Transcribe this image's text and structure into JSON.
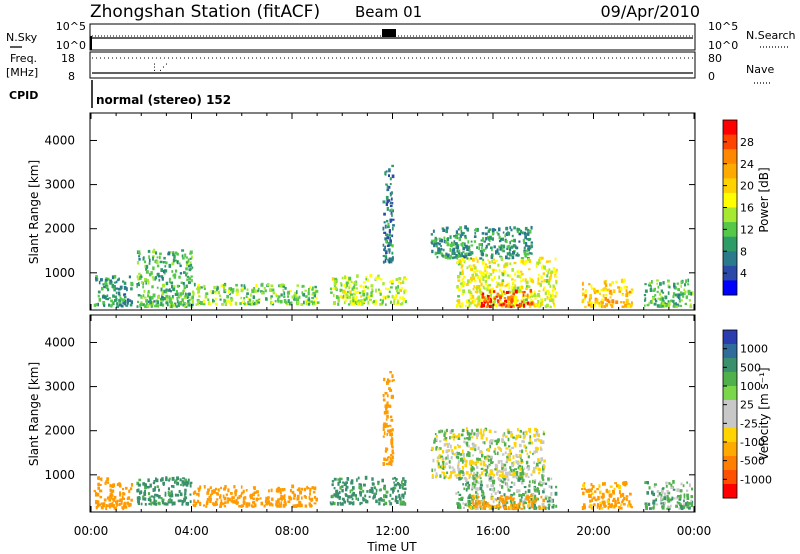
{
  "header": {
    "station": "Zhongshan Station (fitACF)",
    "beam": "Beam 01",
    "date": "09/Apr/2010"
  },
  "aux_panels": {
    "nsky_label": "N.Sky",
    "nsearch_label": "N.Search",
    "noise_left_ticks": [
      "10^5",
      "10^0"
    ],
    "noise_right_ticks": [
      "10^5",
      "10^0"
    ],
    "freq_label_line1": "Freq.",
    "freq_label_line2": "[MHz]",
    "freq_ticks": [
      "18",
      "8"
    ],
    "nave_label": "Nave",
    "nave_ticks": [
      "80",
      "0"
    ],
    "cpid_label": "CPID",
    "cpid_text": "normal (stereo) 152"
  },
  "colorbars": {
    "power": {
      "label": "Power [dB]",
      "ticks": [
        "28",
        "24",
        "20",
        "16",
        "12",
        "8",
        "4"
      ],
      "colors": [
        "#ff0000",
        "#ff4400",
        "#ff8800",
        "#ffaa00",
        "#ffd200",
        "#ffff00",
        "#a6e832",
        "#55c84a",
        "#2e9c66",
        "#2b7a8c",
        "#2b4aa8",
        "#0000ff"
      ]
    },
    "velocity": {
      "label": "Velocity [m s⁻¹]",
      "ticks": [
        "1000",
        "500",
        "100",
        "25",
        "-25",
        "-100",
        "-500",
        "-1000"
      ],
      "colors": [
        "#2a3cae",
        "#2f6c9c",
        "#3a8f6c",
        "#4fb04c",
        "#7ad64a",
        "#c8c8c8",
        "#c8c8c8",
        "#ffd400",
        "#ffaa00",
        "#ff8000",
        "#ff5000",
        "#ff0000"
      ]
    }
  },
  "chart_data": [
    {
      "type": "heatmap",
      "title": "Power",
      "xlabel": "Time UT",
      "ylabel": "Slant Range [km]",
      "xlim": [
        "00:00",
        "24:00"
      ],
      "ylim": [
        180,
        4600
      ],
      "x_ticks": [
        "00:00",
        "04:00",
        "08:00",
        "12:00",
        "16:00",
        "20:00",
        "00:00"
      ],
      "y_ticks": [
        1000,
        2000,
        3000,
        4000
      ],
      "colorbar": "Power [dB]",
      "scatter_regions": [
        {
          "t_start": 0.1,
          "t_end": 1.6,
          "r_min": 200,
          "r_max": 900,
          "value": 8
        },
        {
          "t_start": 1.8,
          "t_end": 4.0,
          "r_min": 200,
          "r_max": 1500,
          "value": 10
        },
        {
          "t_start": 4.0,
          "t_end": 6.5,
          "r_min": 250,
          "r_max": 700,
          "value": 12
        },
        {
          "t_start": 6.5,
          "t_end": 9.0,
          "r_min": 250,
          "r_max": 700,
          "value": 12
        },
        {
          "t_start": 9.5,
          "t_end": 12.5,
          "r_min": 250,
          "r_max": 900,
          "value": 14
        },
        {
          "t_start": 11.6,
          "t_end": 12.0,
          "r_min": 1200,
          "r_max": 3400,
          "value": 6
        },
        {
          "t_start": 13.5,
          "t_end": 17.5,
          "r_min": 1300,
          "r_max": 2000,
          "value": 8
        },
        {
          "t_start": 14.5,
          "t_end": 18.5,
          "r_min": 200,
          "r_max": 1300,
          "value": 16
        },
        {
          "t_start": 15.5,
          "t_end": 17.5,
          "r_min": 200,
          "r_max": 550,
          "value": 27
        },
        {
          "t_start": 19.5,
          "t_end": 21.5,
          "r_min": 200,
          "r_max": 800,
          "value": 20
        },
        {
          "t_start": 22.0,
          "t_end": 23.9,
          "r_min": 200,
          "r_max": 800,
          "value": 10
        }
      ]
    },
    {
      "type": "heatmap",
      "title": "Velocity",
      "xlabel": "Time UT",
      "ylabel": "Slant Range [km]",
      "xlim": [
        "00:00",
        "24:00"
      ],
      "ylim": [
        180,
        4600
      ],
      "x_ticks": [
        "00:00",
        "04:00",
        "08:00",
        "12:00",
        "16:00",
        "20:00",
        "00:00"
      ],
      "y_ticks": [
        1000,
        2000,
        3000,
        4000
      ],
      "colorbar": "Velocity [m s⁻¹]",
      "scatter_regions": [
        {
          "t_start": 0.1,
          "t_end": 1.6,
          "r_min": 200,
          "r_max": 900,
          "value": -250
        },
        {
          "t_start": 1.8,
          "t_end": 4.0,
          "r_min": 300,
          "r_max": 900,
          "value": 150
        },
        {
          "t_start": 4.0,
          "t_end": 9.0,
          "r_min": 250,
          "r_max": 700,
          "value": -250
        },
        {
          "t_start": 9.5,
          "t_end": 12.5,
          "r_min": 300,
          "r_max": 900,
          "value": 150
        },
        {
          "t_start": 11.6,
          "t_end": 12.0,
          "r_min": 1200,
          "r_max": 3300,
          "value": -400
        },
        {
          "t_start": 13.5,
          "t_end": 18.0,
          "r_min": 900,
          "r_max": 2000,
          "value": 0
        },
        {
          "t_start": 14.5,
          "t_end": 18.5,
          "r_min": 200,
          "r_max": 900,
          "value": 60
        },
        {
          "t_start": 15.0,
          "t_end": 18.0,
          "r_min": 200,
          "r_max": 500,
          "value": -150
        },
        {
          "t_start": 19.5,
          "t_end": 21.5,
          "r_min": 200,
          "r_max": 800,
          "value": -150
        },
        {
          "t_start": 22.0,
          "t_end": 23.9,
          "r_min": 200,
          "r_max": 800,
          "value": 60
        }
      ]
    }
  ]
}
